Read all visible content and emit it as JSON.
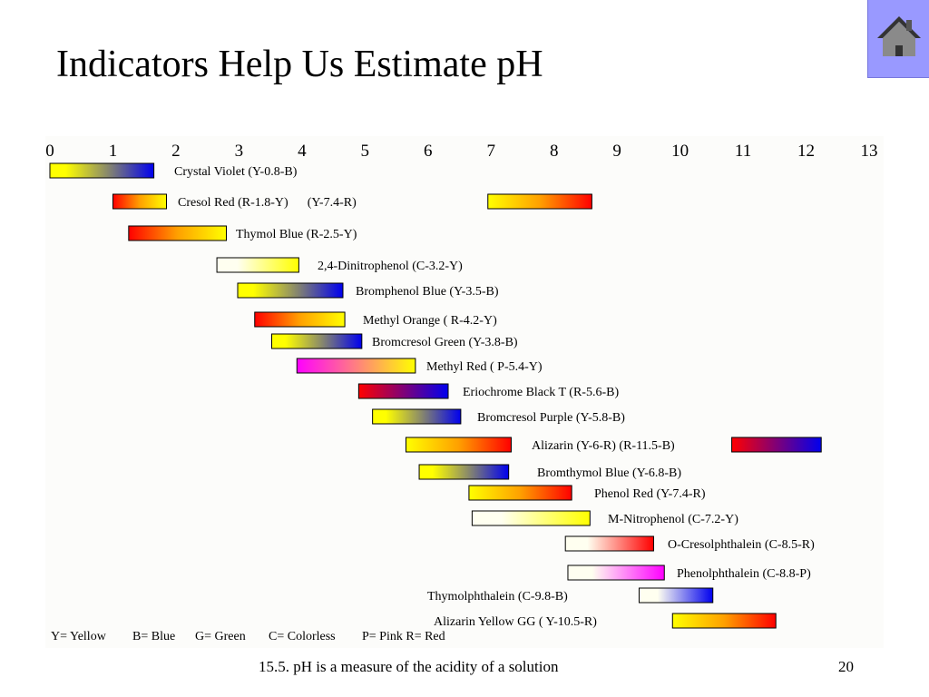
{
  "slide": {
    "title": "Indicators Help Us Estimate pH",
    "footer": "15.5. pH is a measure of the acidity of a solution",
    "page_number": "20"
  },
  "colors": {
    "Y": "#ffff00",
    "B": "#0000ee",
    "R": "#ff0000",
    "C": "#fffff0",
    "P": "#ff00ff",
    "O": "#ffa000",
    "panel": "#fcfcfa",
    "home_button": "#9999ff"
  },
  "icons": {
    "home": "home-icon"
  },
  "chart_data": {
    "type": "range-bars",
    "xlim": [
      0,
      13
    ],
    "x_ticks": [
      "0",
      "1",
      "2",
      "3",
      "4",
      "5",
      "6",
      "7",
      "8",
      "9",
      "10",
      "11",
      "12",
      "13"
    ],
    "indicators": [
      {
        "label": "Crystal Violet (Y-0.8-B)",
        "ranges": [
          {
            "start": 0.0,
            "end": 1.65,
            "from": "Y",
            "to": "B"
          }
        ]
      },
      {
        "label": "Cresol Red (R-1.8-Y)      (Y-7.4-R)",
        "ranges": [
          {
            "start": 1.0,
            "end": 1.85,
            "from": "R",
            "to": "Y"
          },
          {
            "start": 6.95,
            "end": 8.6,
            "from": "Y",
            "to": "R"
          }
        ]
      },
      {
        "label": "Thymol Blue (R-2.5-Y)",
        "ranges": [
          {
            "start": 1.25,
            "end": 2.8,
            "from": "R",
            "to": "Y"
          }
        ]
      },
      {
        "label": "2,4-Dinitrophenol (C-3.2-Y)",
        "ranges": [
          {
            "start": 2.65,
            "end": 3.95,
            "from": "C",
            "to": "Y"
          }
        ]
      },
      {
        "label": "Bromphenol Blue (Y-3.5-B)",
        "ranges": [
          {
            "start": 2.98,
            "end": 4.65,
            "from": "Y",
            "to": "B"
          }
        ]
      },
      {
        "label": "Methyl Orange ( R-4.2-Y)",
        "ranges": [
          {
            "start": 3.25,
            "end": 4.68,
            "from": "R",
            "to": "Y"
          }
        ]
      },
      {
        "label": "Bromcresol Green (Y-3.8-B)",
        "ranges": [
          {
            "start": 3.52,
            "end": 4.95,
            "from": "Y",
            "to": "B"
          }
        ]
      },
      {
        "label": "Methyl Red ( P-5.4-Y)",
        "ranges": [
          {
            "start": 3.92,
            "end": 5.8,
            "from": "P",
            "to": "Y"
          }
        ]
      },
      {
        "label": "Eriochrome Black T (R-5.6-B)",
        "ranges": [
          {
            "start": 4.9,
            "end": 6.32,
            "from": "R",
            "to": "B"
          }
        ]
      },
      {
        "label": "Bromcresol Purple (Y-5.8-B)",
        "ranges": [
          {
            "start": 5.12,
            "end": 6.52,
            "from": "Y",
            "to": "B"
          }
        ]
      },
      {
        "label": "Alizarin (Y-6-R) (R-11.5-B)",
        "ranges": [
          {
            "start": 5.65,
            "end": 7.32,
            "from": "Y",
            "to": "R"
          },
          {
            "start": 10.82,
            "end": 12.24,
            "from": "R",
            "to": "B"
          }
        ]
      },
      {
        "label": "Bromthymol Blue (Y-6.8-B)",
        "ranges": [
          {
            "start": 5.86,
            "end": 7.28,
            "from": "Y",
            "to": "B"
          }
        ]
      },
      {
        "label": "Phenol Red (Y-7.4-R)",
        "ranges": [
          {
            "start": 6.65,
            "end": 8.28,
            "from": "Y",
            "to": "R"
          }
        ]
      },
      {
        "label": "M-Nitrophenol (C-7.2-Y)",
        "ranges": [
          {
            "start": 6.7,
            "end": 8.57,
            "from": "C",
            "to": "Y"
          }
        ]
      },
      {
        "label": "O-Cresolphthalein (C-8.5-R)",
        "ranges": [
          {
            "start": 8.18,
            "end": 9.58,
            "from": "C",
            "to": "R"
          }
        ]
      },
      {
        "label": "Phenolphthalein (C-8.8-P)",
        "ranges": [
          {
            "start": 8.22,
            "end": 9.75,
            "from": "C",
            "to": "P"
          }
        ]
      },
      {
        "label": "Thymolphthalein (C-9.8-B)",
        "ranges": [
          {
            "start": 9.35,
            "end": 10.52,
            "from": "C",
            "to": "B"
          }
        ]
      },
      {
        "label": "Alizarin Yellow GG ( Y-10.5-R)",
        "ranges": [
          {
            "start": 9.88,
            "end": 11.52,
            "from": "Y",
            "to": "R"
          }
        ]
      }
    ],
    "legend": [
      "Y= Yellow",
      "B= Blue",
      "G= Green",
      "C= Colorless",
      "P= Pink R= Red"
    ]
  }
}
